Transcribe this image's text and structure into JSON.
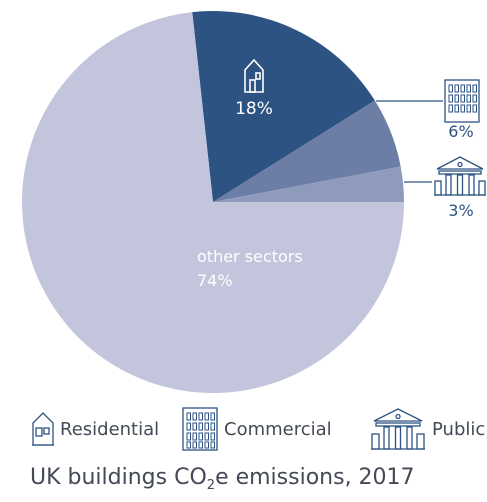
{
  "chart_data": {
    "type": "pie",
    "slices": [
      {
        "label": "Residential",
        "value": 18,
        "value_label": "18%",
        "color": "#2d5382",
        "icon": "house-icon"
      },
      {
        "label": "Commercial",
        "value": 6,
        "value_label": "6%",
        "color": "#6c7ea6",
        "icon": "office-building-icon"
      },
      {
        "label": "Public",
        "value": 3,
        "value_label": "3%",
        "color": "#8e9bbd",
        "icon": "public-building-icon"
      },
      {
        "label": "other sectors",
        "value": 74,
        "value_label": "74%",
        "color": "#c3c5dc"
      }
    ],
    "title": {
      "prefix": "UK buildings CO",
      "sub": "2",
      "suffix": "e emissions, 2017"
    }
  },
  "legend": [
    {
      "label": "Residential",
      "icon": "house-icon"
    },
    {
      "label": "Commercial",
      "icon": "office-building-icon"
    },
    {
      "label": "Public",
      "icon": "public-building-icon"
    }
  ],
  "colors": {
    "callout": "#2d5382",
    "text": "#444a55"
  }
}
